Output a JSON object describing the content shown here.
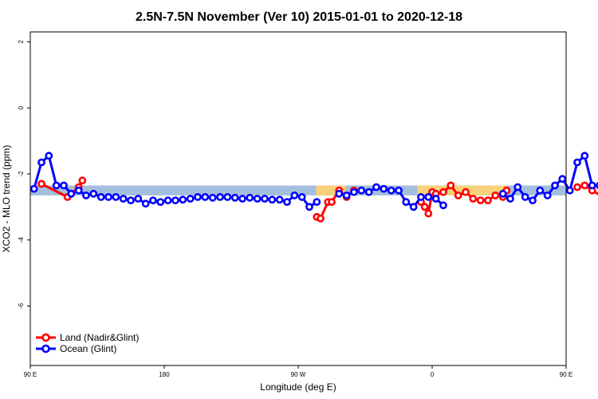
{
  "chart_data": {
    "type": "line",
    "title": "2.5N-7.5N November (Ver 10)   2015-01-01 to 2020-12-18",
    "xlabel": "Longitude (deg E)",
    "ylabel": "XCO2 - MLO trend (ppm)",
    "xlim": [
      90,
      450
    ],
    "ylim": [
      -7.8,
      2.3
    ],
    "x_ticks": [
      {
        "value": 90,
        "label": "90 E"
      },
      {
        "value": 180,
        "label": "180"
      },
      {
        "value": 270,
        "label": "90 W"
      },
      {
        "value": 360,
        "label": "0"
      },
      {
        "value": 450,
        "label": "90 E"
      },
      {
        "value": 540,
        "label": "180"
      }
    ],
    "y_ticks": [
      {
        "value": 2,
        "label": "2"
      },
      {
        "value": 0,
        "label": "0"
      },
      {
        "value": -2,
        "label": "-2"
      },
      {
        "value": -4,
        "label": "-4"
      },
      {
        "value": -6,
        "label": "-6"
      }
    ],
    "legend_position": "bottom-left",
    "bands": [
      {
        "name": "ocean-band",
        "color": "#a4bedf",
        "x": [
          90,
          540
        ],
        "y": [
          -2.65,
          -2.35
        ]
      },
      {
        "name": "land-band",
        "color": "#f8d27a",
        "segments": [
          [
            282,
            302
          ],
          [
            350,
            410
          ]
        ],
        "y": [
          -2.65,
          -2.35
        ]
      }
    ],
    "series": [
      {
        "name": "Land (Nadir&Glint)",
        "color": "#ff0000",
        "segments": [
          {
            "x": [
              97.5,
              115,
              117.5,
              122.5,
              125
            ],
            "y": [
              -2.3,
              -2.7,
              -2.6,
              -2.4,
              -2.2
            ]
          },
          {
            "x": [
              282.5,
              285,
              290,
              292.5,
              297.5,
              302.5,
              307.5
            ],
            "y": [
              -3.3,
              -3.35,
              -2.85,
              -2.85,
              -2.5,
              -2.7,
              -2.5
            ]
          },
          {
            "x": [
              352.5,
              355,
              357.5,
              360,
              362.5,
              367.5,
              372.5,
              377.5,
              382.5,
              387.5,
              392.5,
              397.5,
              402.5,
              407.5,
              410
            ],
            "y": [
              -2.85,
              -3.0,
              -3.2,
              -2.55,
              -2.6,
              -2.55,
              -2.35,
              -2.65,
              -2.55,
              -2.75,
              -2.8,
              -2.8,
              -2.65,
              -2.7,
              -2.5
            ]
          },
          {
            "x": [
              457.5,
              462.5,
              467.5,
              475,
              477.5,
              482.5,
              485
            ],
            "y": [
              -2.4,
              -2.35,
              -2.5,
              -2.7,
              -2.6,
              -2.4,
              -2.2
            ]
          }
        ]
      },
      {
        "name": "Ocean (Glint)",
        "color": "#0000ff",
        "segments": [
          {
            "x": [
              92.5,
              97.5,
              102.5,
              107.5,
              112.5,
              117.5,
              122.5,
              127.5,
              132.5,
              137.5,
              142.5,
              147.5,
              152.5,
              157.5,
              162.5,
              167.5,
              172.5,
              177.5,
              182.5,
              187.5,
              192.5,
              197.5,
              202.5,
              207.5,
              212.5,
              217.5,
              222.5,
              227.5,
              232.5,
              237.5,
              242.5,
              247.5,
              252.5,
              257.5,
              262.5,
              267.5,
              272.5,
              277.5,
              282.5
            ],
            "y": [
              -2.45,
              -1.65,
              -1.45,
              -2.35,
              -2.35,
              -2.6,
              -2.5,
              -2.65,
              -2.6,
              -2.7,
              -2.7,
              -2.7,
              -2.75,
              -2.8,
              -2.75,
              -2.9,
              -2.8,
              -2.85,
              -2.8,
              -2.8,
              -2.78,
              -2.75,
              -2.7,
              -2.7,
              -2.72,
              -2.7,
              -2.7,
              -2.72,
              -2.75,
              -2.72,
              -2.75,
              -2.75,
              -2.78,
              -2.78,
              -2.85,
              -2.65,
              -2.7,
              -3.0,
              -2.85
            ]
          },
          {
            "x": [
              297.5,
              302.5,
              307.5,
              312.5,
              317.5,
              322.5,
              327.5,
              332.5,
              337.5,
              342.5,
              347.5,
              352.5,
              357.5,
              362.5,
              367.5
            ],
            "y": [
              -2.6,
              -2.65,
              -2.55,
              -2.5,
              -2.55,
              -2.4,
              -2.45,
              -2.5,
              -2.5,
              -2.85,
              -3.0,
              -2.7,
              -2.7,
              -2.75,
              -2.95
            ]
          },
          {
            "x": [
              407.5,
              412.5,
              417.5,
              422.5,
              427.5,
              432.5,
              437.5,
              442.5,
              447.5,
              452.5,
              457.5,
              462.5,
              467.5,
              472.5,
              477.5,
              482.5,
              487.5,
              492.5,
              497.5,
              502.5,
              507.5,
              512.5,
              517.5,
              522.5,
              527.5,
              532.5,
              537.5
            ],
            "y": [
              -2.6,
              -2.75,
              -2.4,
              -2.7,
              -2.8,
              -2.5,
              -2.65,
              -2.35,
              -2.15,
              -2.5,
              -1.65,
              -1.45,
              -2.35,
              -2.35,
              -2.6,
              -2.5,
              -2.65,
              -2.6,
              -2.7,
              -2.7,
              -2.7,
              -2.75,
              -2.8,
              -2.75,
              -2.9,
              -2.8,
              -2.88
            ]
          }
        ]
      }
    ]
  }
}
